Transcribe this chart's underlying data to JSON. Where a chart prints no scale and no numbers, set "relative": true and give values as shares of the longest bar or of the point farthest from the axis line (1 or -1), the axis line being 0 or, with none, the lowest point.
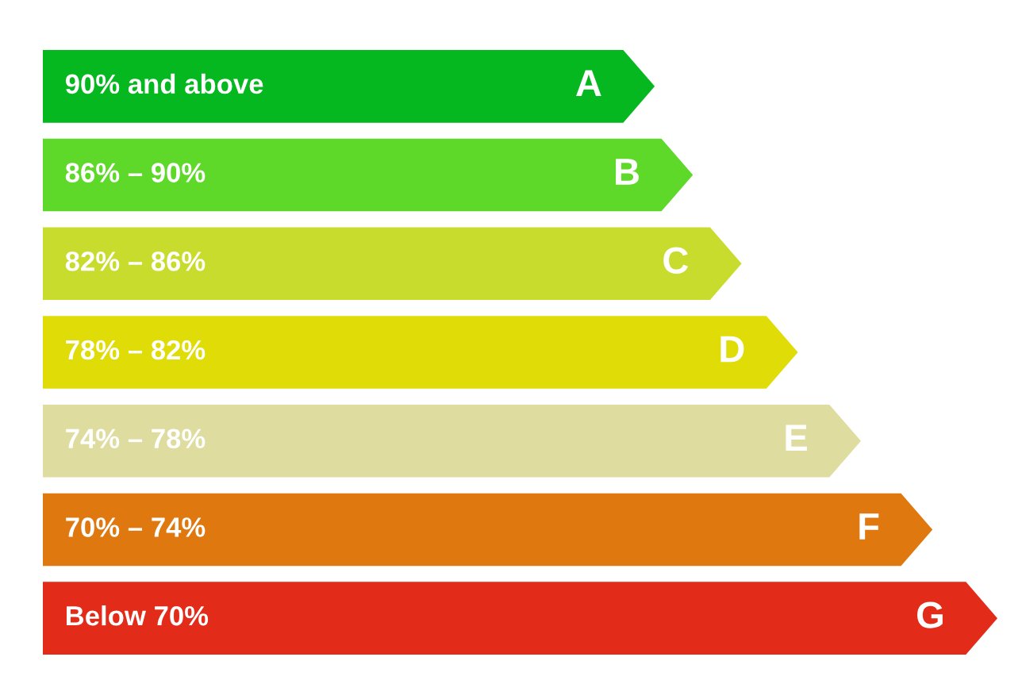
{
  "chart_data": {
    "type": "bar",
    "orientation": "horizontal",
    "relative": true,
    "categories": [
      "A",
      "B",
      "C",
      "D",
      "E",
      "F",
      "G"
    ],
    "values": [
      0.641,
      0.681,
      0.732,
      0.791,
      0.857,
      0.932,
      1
    ],
    "colors": [
      "#05b820",
      "#5ed92a",
      "#c8dc2e",
      "#dfdc07",
      "#dfdca0",
      "#e07810",
      "#e32b1a"
    ],
    "annotations": [
      "90% and above",
      "86% – 90%",
      "82% – 86%",
      "78% – 82%",
      "74% – 78%",
      "70% – 74%",
      "Below 70%"
    ]
  }
}
